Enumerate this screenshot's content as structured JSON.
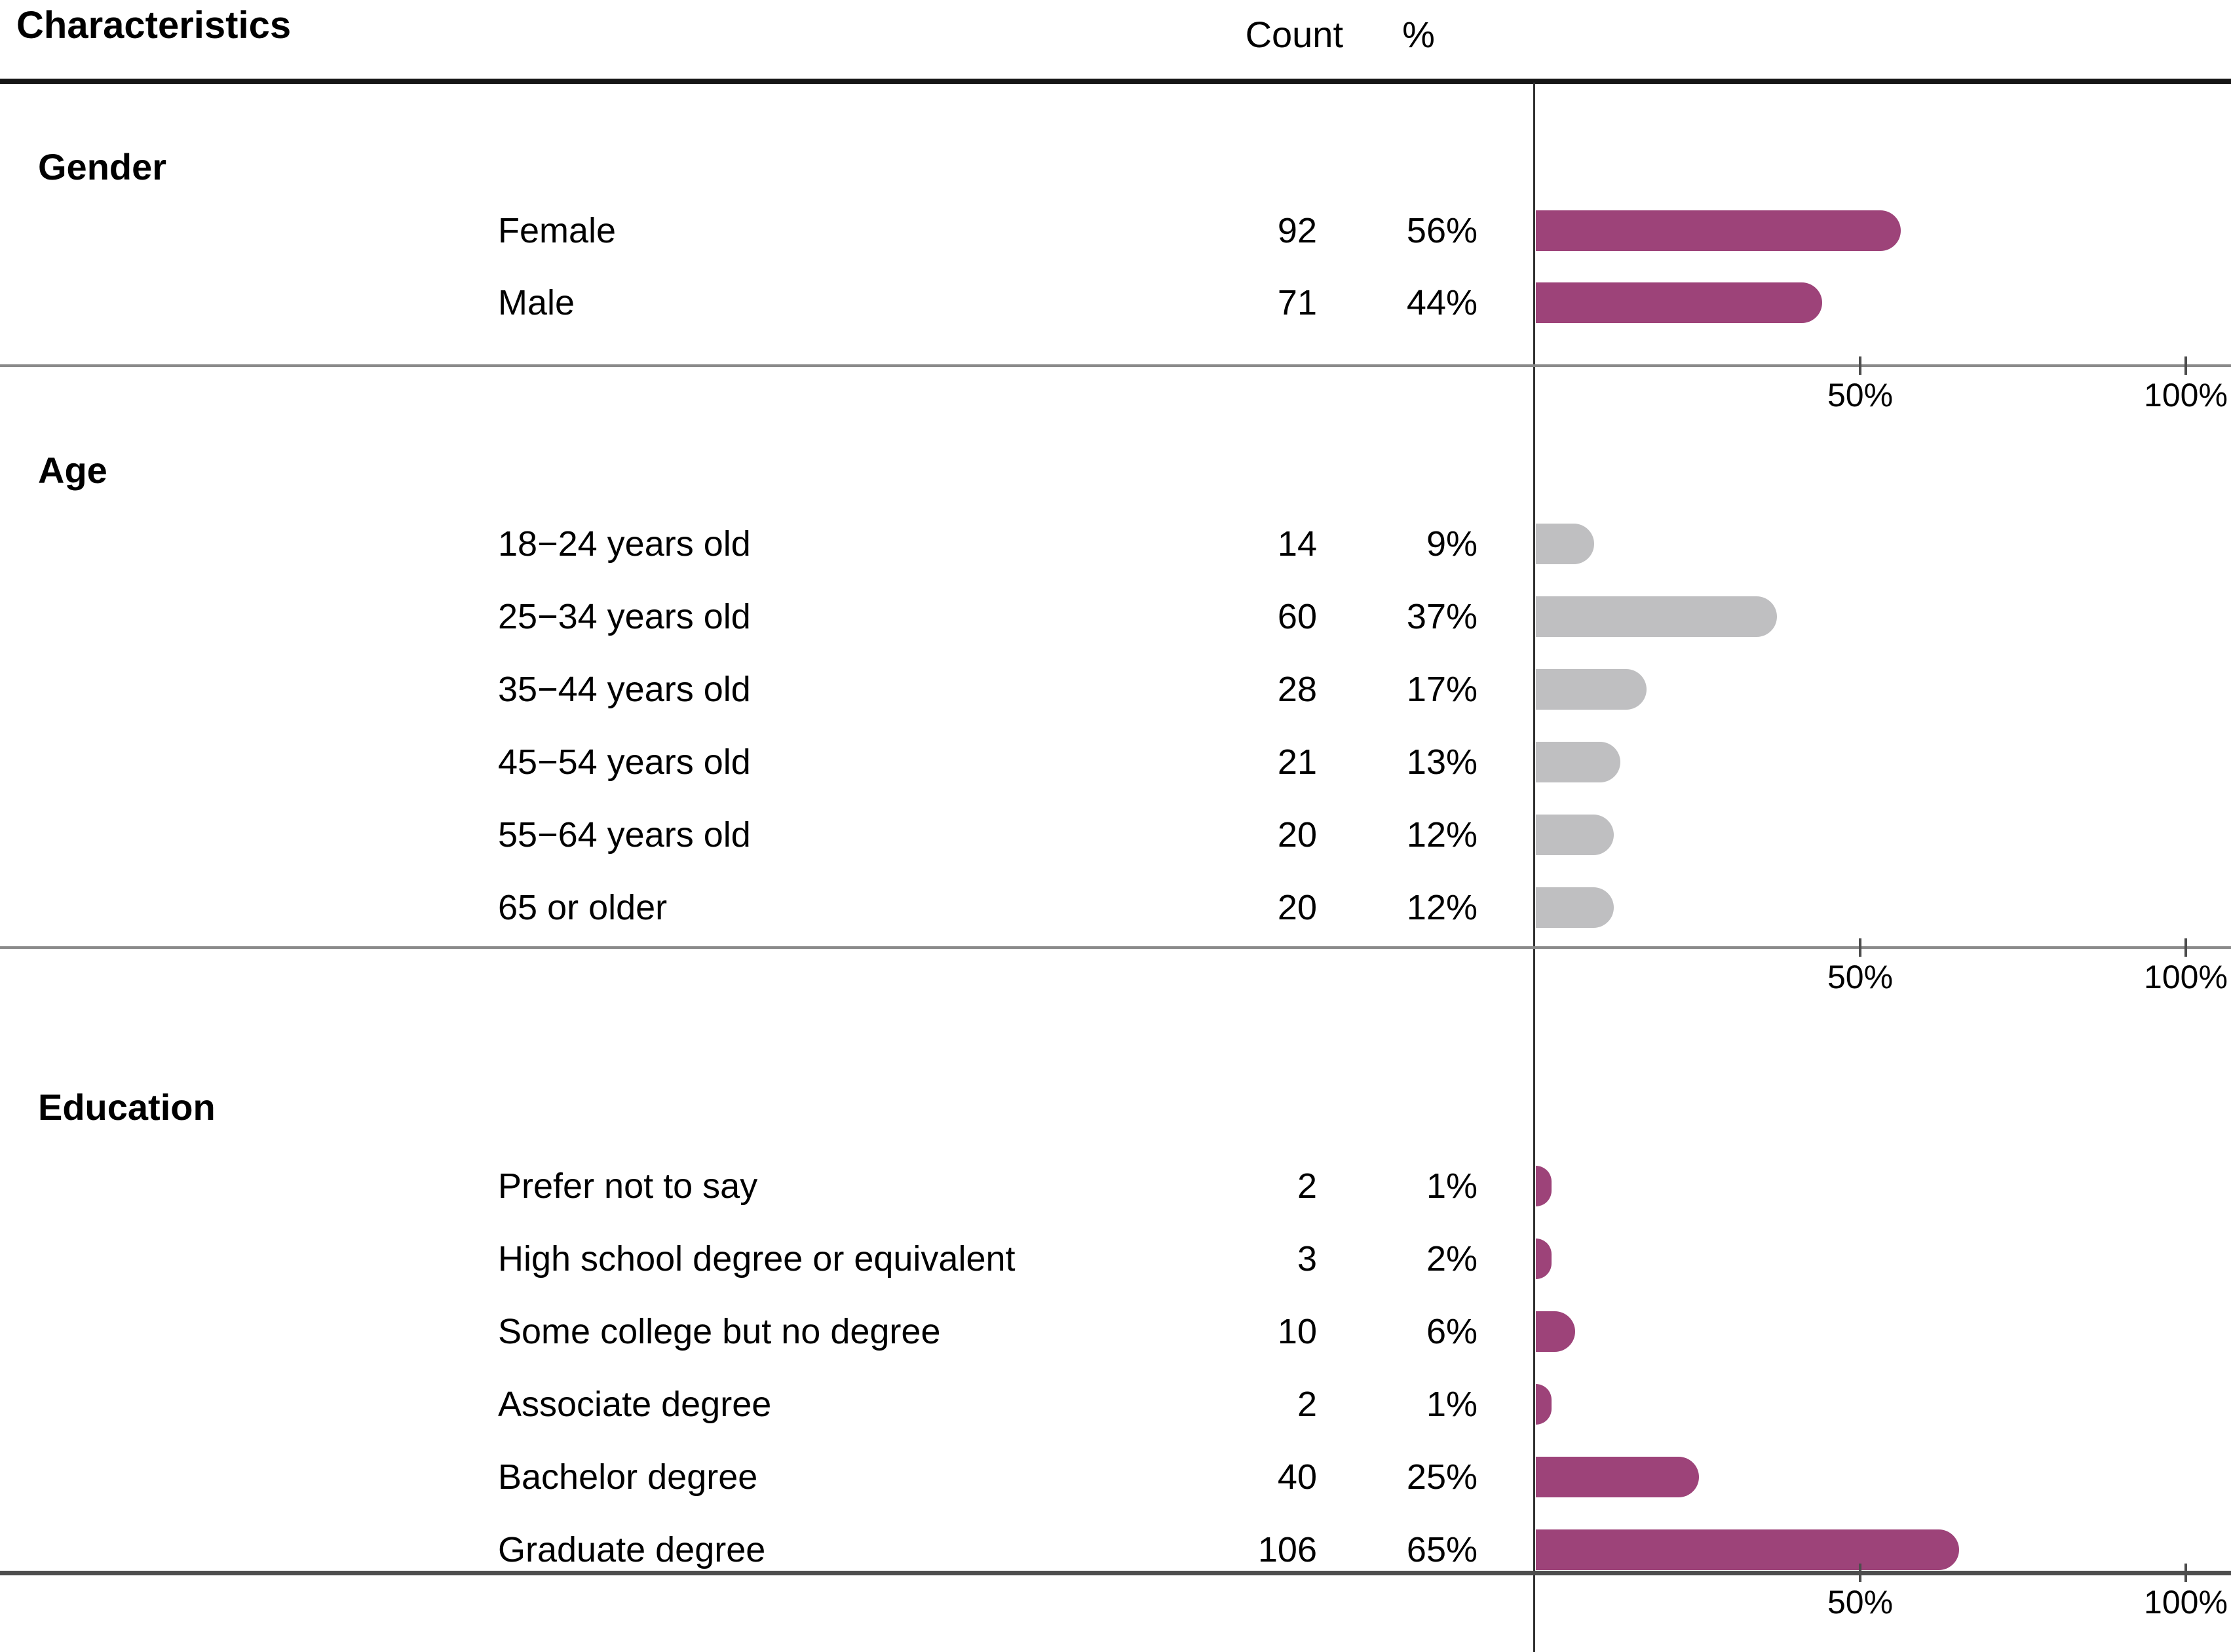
{
  "title": "Characteristics",
  "columns": {
    "count": "Count",
    "percent": "%"
  },
  "axis": {
    "ticks": [
      "50%",
      "100%"
    ],
    "tick_values": [
      50,
      100
    ]
  },
  "colors": {
    "accent_bar": "#9d4379",
    "muted_bar": "#bfbfc1"
  },
  "chart_data": {
    "type": "bar",
    "orientation": "horizontal",
    "xlim": [
      0,
      100
    ],
    "tick_values": [
      50,
      100
    ],
    "tick_labels": [
      "50%",
      "100%"
    ],
    "sections": [
      {
        "title": "Gender",
        "bar_color": "#9d4379",
        "rows": [
          {
            "label": "Female",
            "count": "92",
            "pct_label": "56%",
            "value": 56
          },
          {
            "label": "Male",
            "count": "71",
            "pct_label": "44%",
            "value": 44
          }
        ]
      },
      {
        "title": "Age",
        "bar_color": "#bfbfc1",
        "rows": [
          {
            "label": "18−24 years old",
            "count": "14",
            "pct_label": "9%",
            "value": 9
          },
          {
            "label": "25−34 years old",
            "count": "60",
            "pct_label": "37%",
            "value": 37
          },
          {
            "label": "35−44 years old",
            "count": "28",
            "pct_label": "17%",
            "value": 17
          },
          {
            "label": "45−54 years old",
            "count": "21",
            "pct_label": "13%",
            "value": 13
          },
          {
            "label": "55−64 years old",
            "count": "20",
            "pct_label": "12%",
            "value": 12
          },
          {
            "label": "65 or older",
            "count": "20",
            "pct_label": "12%",
            "value": 12
          }
        ]
      },
      {
        "title": "Education",
        "bar_color": "#9d4379",
        "rows": [
          {
            "label": "Prefer not to say",
            "count": "2",
            "pct_label": "1%",
            "value": 1
          },
          {
            "label": "High school degree or equivalent",
            "count": "3",
            "pct_label": "2%",
            "value": 2
          },
          {
            "label": "Some college but no degree",
            "count": "10",
            "pct_label": "6%",
            "value": 6
          },
          {
            "label": "Associate degree",
            "count": "2",
            "pct_label": "1%",
            "value": 1
          },
          {
            "label": "Bachelor degree",
            "count": "40",
            "pct_label": "25%",
            "value": 25
          },
          {
            "label": "Graduate degree",
            "count": "106",
            "pct_label": "65%",
            "value": 65
          }
        ]
      }
    ]
  }
}
